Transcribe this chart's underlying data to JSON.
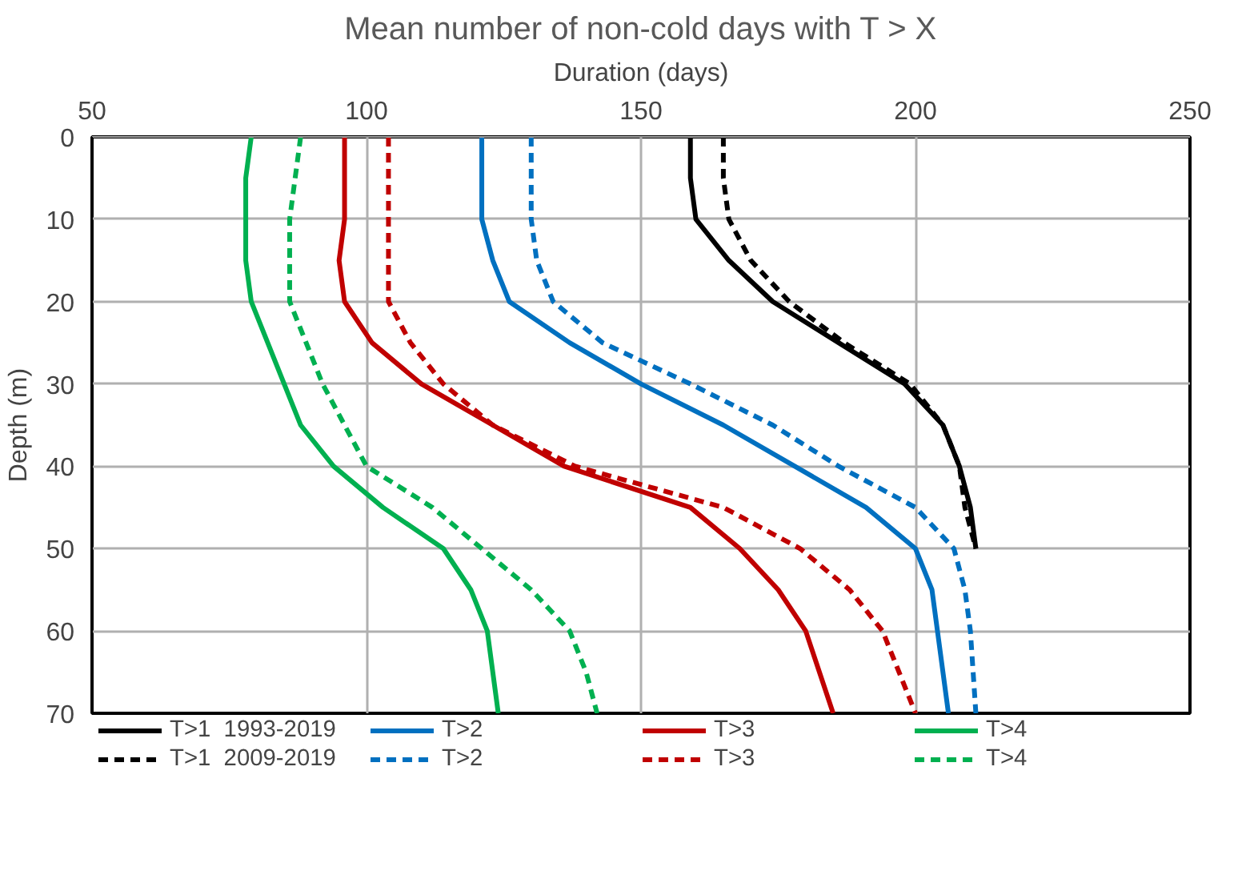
{
  "chart_data": {
    "type": "line",
    "title": "Mean number of non-cold days with T > X",
    "xlabel": "Duration (days)",
    "ylabel": "Depth (m)",
    "xlim": [
      50,
      250
    ],
    "xticks": [
      50,
      100,
      150,
      200,
      250
    ],
    "ylim": [
      70,
      0
    ],
    "yticks": [
      0,
      10,
      20,
      30,
      40,
      50,
      60,
      70
    ],
    "grid": true,
    "legend": "bottom",
    "marker": "none",
    "series": [
      {
        "name": "T>1  1993-2019",
        "color": "#000000",
        "line_style": "solid",
        "x": [
          159,
          159,
          160,
          166,
          174,
          186,
          198,
          205,
          208,
          210,
          211
        ],
        "values": [
          0,
          5,
          10,
          15,
          20,
          25,
          30,
          35,
          40,
          45,
          50
        ]
      },
      {
        "name": "T>2",
        "color": "#0070c0",
        "line_style": "solid",
        "x": [
          121,
          121,
          121,
          123,
          126,
          137,
          150,
          165,
          178,
          191,
          200,
          203,
          204,
          206
        ],
        "values": [
          0,
          5,
          10,
          15,
          20,
          25,
          30,
          35,
          40,
          45,
          50,
          55,
          60,
          70
        ]
      },
      {
        "name": "T>3",
        "color": "#c00000",
        "line_style": "solid",
        "x": [
          96,
          96,
          96,
          95,
          96,
          101,
          110,
          123,
          136,
          159,
          168,
          175,
          180,
          185
        ],
        "values": [
          0,
          5,
          10,
          15,
          20,
          25,
          30,
          35,
          40,
          45,
          50,
          55,
          60,
          70
        ]
      },
      {
        "name": "T>4",
        "color": "#00b050",
        "line_style": "solid",
        "x": [
          79,
          78,
          78,
          78,
          79,
          82,
          85,
          88,
          94,
          103,
          114,
          119,
          122,
          124
        ],
        "values": [
          0,
          5,
          10,
          15,
          20,
          25,
          30,
          35,
          40,
          45,
          50,
          55,
          60,
          70
        ]
      },
      {
        "name": "T>1  2009-2019",
        "color": "#000000",
        "line_style": "dashed",
        "x": [
          165,
          165,
          166,
          170,
          177,
          187,
          199,
          205,
          208,
          209,
          211
        ],
        "values": [
          0,
          5,
          10,
          15,
          20,
          25,
          30,
          35,
          40,
          45,
          50
        ]
      },
      {
        "name": "T>2",
        "color": "#0070c0",
        "line_style": "dashed",
        "x": [
          130,
          130,
          130,
          131,
          134,
          143,
          159,
          174,
          186,
          200,
          207,
          209,
          210,
          211
        ],
        "values": [
          0,
          5,
          10,
          15,
          20,
          25,
          30,
          35,
          40,
          45,
          50,
          55,
          60,
          70
        ]
      },
      {
        "name": "T>3",
        "color": "#c00000",
        "line_style": "dashed",
        "x": [
          104,
          104,
          104,
          104,
          104,
          108,
          114,
          123,
          138,
          165,
          179,
          188,
          194,
          200
        ],
        "values": [
          0,
          5,
          10,
          15,
          20,
          25,
          30,
          35,
          40,
          45,
          50,
          55,
          60,
          70
        ]
      },
      {
        "name": "T>4",
        "color": "#00b050",
        "line_style": "dashed",
        "x": [
          88,
          87,
          86,
          86,
          86,
          89,
          92,
          96,
          100,
          112,
          121,
          130,
          137,
          140,
          142
        ],
        "values": [
          0,
          5,
          10,
          15,
          20,
          25,
          30,
          35,
          40,
          45,
          50,
          55,
          60,
          65,
          70
        ]
      }
    ]
  }
}
